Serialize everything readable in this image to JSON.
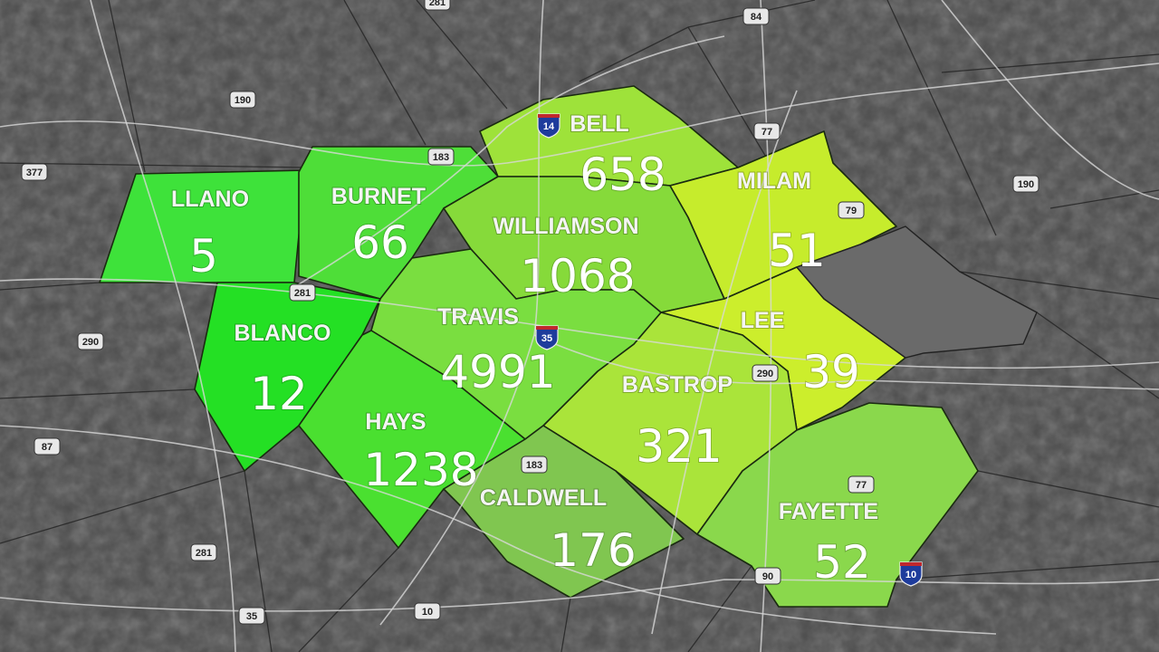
{
  "colors": {
    "background": "#4b4b4b",
    "roads": "#d8d8d8",
    "unselected_county": "#6a6a6a"
  },
  "counties": [
    {
      "name": "LLANO",
      "value": "5",
      "color": "#3ee23a"
    },
    {
      "name": "BURNET",
      "value": "66",
      "color": "#4ede38"
    },
    {
      "name": "BELL",
      "value": "658",
      "color": "#9ee23a"
    },
    {
      "name": "WILLIAMSON",
      "value": "1068",
      "color": "#86da3a"
    },
    {
      "name": "MILAM",
      "value": "51",
      "color": "#c6ec2c"
    },
    {
      "name": "LEE",
      "value": "39",
      "color": "#ccee2c"
    },
    {
      "name": "BASTROP",
      "value": "321",
      "color": "#aae43a"
    },
    {
      "name": "TRAVIS",
      "value": "4991",
      "color": "#7ade40"
    },
    {
      "name": "BLANCO",
      "value": "12",
      "color": "#24e024"
    },
    {
      "name": "HAYS",
      "value": "1238",
      "color": "#4ae030"
    },
    {
      "name": "CALDWELL",
      "value": "176",
      "color": "#80c650"
    },
    {
      "name": "FAYETTE",
      "value": "52",
      "color": "#8ad84c"
    }
  ],
  "highway_shields": {
    "us": [
      "281",
      "84",
      "190",
      "377",
      "183",
      "77",
      "190",
      "79",
      "281",
      "290",
      "290",
      "87",
      "183",
      "281",
      "35",
      "10",
      "90",
      "77"
    ],
    "interstate": [
      "14",
      "35",
      "10"
    ]
  }
}
